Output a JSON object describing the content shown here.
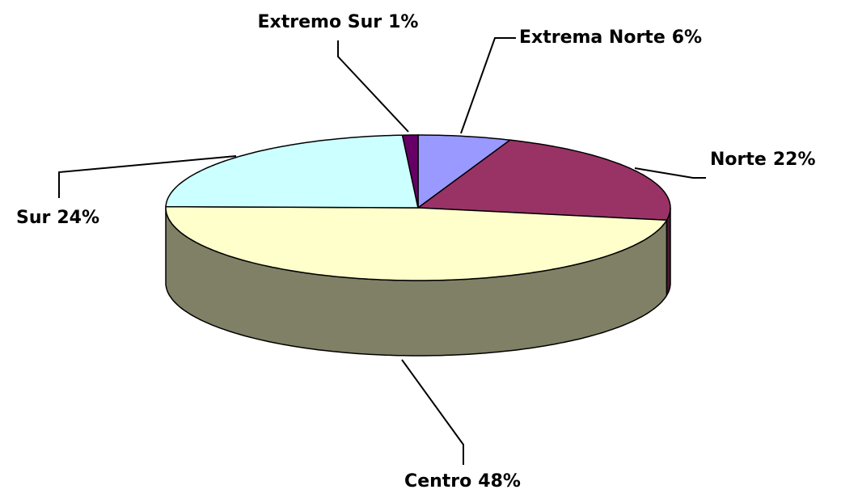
{
  "chart_data": {
    "type": "pie",
    "categories": [
      "Extrema Norte",
      "Norte",
      "Centro",
      "Sur",
      "Extremo Sur"
    ],
    "values": [
      6,
      22,
      48,
      24,
      1
    ],
    "value_labels": [
      "6%",
      "22%",
      "48%",
      "24%",
      "1%"
    ],
    "colors": [
      "#9999ff",
      "#993366",
      "#ffffcc",
      "#ccffff",
      "#660066"
    ],
    "three_d": true
  }
}
